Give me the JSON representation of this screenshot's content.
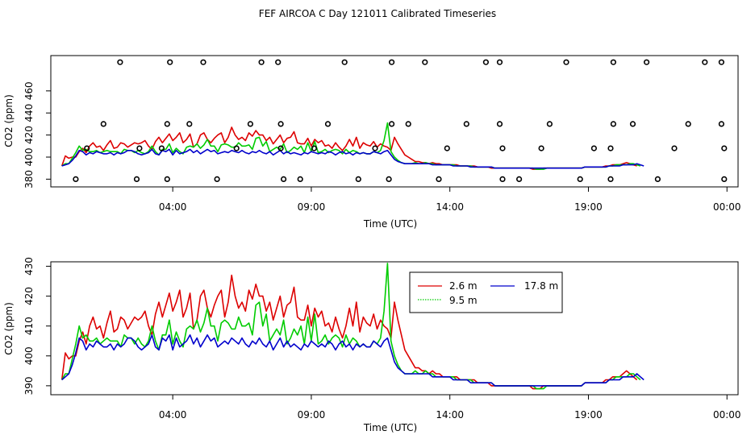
{
  "chart_data": {
    "type": "line",
    "title": "FEF  AIRCOA C  Day 121011  Calibrated Timeseries",
    "colors": {
      "2.6 m": "#dd0000",
      "9.5 m": "#00cc00",
      "17.8 m": "#0000cc",
      "markers": "#000000"
    },
    "panels": [
      {
        "name": "top",
        "xlabel": "Time (UTC)",
        "ylabel": "CO2 (ppm)",
        "xlim": [
          -0.4,
          24.4
        ],
        "ylim": [
          373,
          492
        ],
        "x_ticks": [
          {
            "v": 4,
            "label": "04:00"
          },
          {
            "v": 9,
            "label": "09:00"
          },
          {
            "v": 14,
            "label": "14:00"
          },
          {
            "v": 19,
            "label": "19:00"
          },
          {
            "v": 24,
            "label": "00:00"
          }
        ],
        "y_ticks": [
          {
            "v": 380,
            "label": "380"
          },
          {
            "v": 400,
            "label": "400"
          },
          {
            "v": 420,
            "label": "420"
          },
          {
            "v": 440,
            "label": "440"
          },
          {
            "v": 460,
            "label": "460"
          }
        ],
        "show_lines": [
          "2.6 m",
          "9.5 m",
          "17.8 m"
        ],
        "markers": [
          {
            "x": 2.1,
            "y": 486
          },
          {
            "x": 3.9,
            "y": 486
          },
          {
            "x": 5.1,
            "y": 486
          },
          {
            "x": 7.2,
            "y": 486
          },
          {
            "x": 7.8,
            "y": 486
          },
          {
            "x": 10.2,
            "y": 486
          },
          {
            "x": 11.9,
            "y": 486
          },
          {
            "x": 13.1,
            "y": 486
          },
          {
            "x": 15.3,
            "y": 486
          },
          {
            "x": 15.8,
            "y": 486
          },
          {
            "x": 18.2,
            "y": 486
          },
          {
            "x": 19.9,
            "y": 486
          },
          {
            "x": 21.1,
            "y": 486
          },
          {
            "x": 23.2,
            "y": 486
          },
          {
            "x": 23.8,
            "y": 486
          },
          {
            "x": 1.5,
            "y": 430
          },
          {
            "x": 3.8,
            "y": 430
          },
          {
            "x": 4.6,
            "y": 430
          },
          {
            "x": 6.8,
            "y": 430
          },
          {
            "x": 7.9,
            "y": 430
          },
          {
            "x": 9.6,
            "y": 430
          },
          {
            "x": 11.9,
            "y": 430
          },
          {
            "x": 12.5,
            "y": 430
          },
          {
            "x": 14.6,
            "y": 430
          },
          {
            "x": 15.8,
            "y": 430
          },
          {
            "x": 17.6,
            "y": 430
          },
          {
            "x": 19.9,
            "y": 430
          },
          {
            "x": 20.6,
            "y": 430
          },
          {
            "x": 22.6,
            "y": 430
          },
          {
            "x": 23.8,
            "y": 430
          },
          {
            "x": 0.9,
            "y": 408
          },
          {
            "x": 2.8,
            "y": 408
          },
          {
            "x": 3.6,
            "y": 408
          },
          {
            "x": 6.3,
            "y": 408
          },
          {
            "x": 7.9,
            "y": 408
          },
          {
            "x": 9.1,
            "y": 408
          },
          {
            "x": 11.3,
            "y": 408
          },
          {
            "x": 13.9,
            "y": 408
          },
          {
            "x": 15.9,
            "y": 408
          },
          {
            "x": 17.3,
            "y": 408
          },
          {
            "x": 19.2,
            "y": 408
          },
          {
            "x": 19.8,
            "y": 408
          },
          {
            "x": 22.1,
            "y": 408
          },
          {
            "x": 23.9,
            "y": 408
          },
          {
            "x": 0.5,
            "y": 380
          },
          {
            "x": 2.7,
            "y": 380
          },
          {
            "x": 3.8,
            "y": 380
          },
          {
            "x": 5.6,
            "y": 380
          },
          {
            "x": 8.0,
            "y": 380
          },
          {
            "x": 8.6,
            "y": 380
          },
          {
            "x": 10.7,
            "y": 380
          },
          {
            "x": 11.8,
            "y": 380
          },
          {
            "x": 13.6,
            "y": 380
          },
          {
            "x": 15.9,
            "y": 380
          },
          {
            "x": 16.5,
            "y": 380
          },
          {
            "x": 18.7,
            "y": 380
          },
          {
            "x": 19.8,
            "y": 380
          },
          {
            "x": 21.5,
            "y": 380
          },
          {
            "x": 23.9,
            "y": 380
          }
        ]
      },
      {
        "name": "bottom",
        "xlabel": "Time (UTC)",
        "ylabel": "CO2 (ppm)",
        "xlim": [
          -0.4,
          24.4
        ],
        "ylim": [
          387,
          431.5
        ],
        "x_ticks": [
          {
            "v": 4,
            "label": "04:00"
          },
          {
            "v": 9,
            "label": "09:00"
          },
          {
            "v": 14,
            "label": "14:00"
          },
          {
            "v": 19,
            "label": "19:00"
          },
          {
            "v": 24,
            "label": "00:00"
          }
        ],
        "y_ticks": [
          {
            "v": 390,
            "label": "390"
          },
          {
            "v": 400,
            "label": "400"
          },
          {
            "v": 410,
            "label": "410"
          },
          {
            "v": 420,
            "label": "420"
          },
          {
            "v": 430,
            "label": "430"
          }
        ],
        "show_lines": [
          "2.6 m",
          "9.5 m",
          "17.8 m"
        ]
      }
    ],
    "legend": {
      "position": "top-right of center",
      "entries": [
        {
          "label": "2.6 m",
          "color": "#dd0000"
        },
        {
          "label": "17.8 m",
          "color": "#0000cc"
        },
        {
          "label": "9.5 m",
          "color": "#00cc00"
        }
      ]
    },
    "series_x_start": 0,
    "series_x_step": 0.125,
    "series": [
      {
        "name": "2.6 m",
        "values": [
          392,
          401,
          399,
          400,
          400,
          405,
          408,
          404,
          410,
          413,
          409,
          410,
          406,
          411,
          415,
          408,
          409,
          413,
          412,
          409,
          411,
          413,
          412,
          413,
          415,
          410,
          407,
          414,
          418,
          413,
          417,
          421,
          415,
          418,
          422,
          413,
          416,
          421,
          409,
          412,
          420,
          422,
          416,
          413,
          417,
          420,
          422,
          413,
          418,
          427,
          420,
          416,
          418,
          415,
          422,
          419,
          424,
          420,
          420,
          415,
          418,
          412,
          416,
          420,
          413,
          417,
          418,
          423,
          413,
          412,
          412,
          417,
          410,
          416,
          413,
          415,
          410,
          411,
          408,
          413,
          409,
          406,
          410,
          416,
          410,
          418,
          408,
          413,
          411,
          410,
          414,
          409,
          412,
          410,
          409,
          406,
          418,
          412,
          407,
          402,
          400,
          398,
          396,
          396,
          395,
          395,
          394,
          395,
          394,
          394,
          393,
          393,
          393,
          393,
          393,
          392,
          392,
          392,
          392,
          392,
          391,
          391,
          391,
          391,
          390,
          390,
          390,
          390,
          390,
          390,
          390,
          390,
          390,
          390,
          390,
          390,
          389,
          389,
          389,
          390,
          390,
          390,
          390,
          390,
          390,
          390,
          390,
          390,
          390,
          390,
          390,
          391,
          391,
          391,
          391,
          391,
          391,
          392,
          392,
          393,
          393,
          393,
          394,
          395,
          394,
          393,
          392
        ]
      },
      {
        "name": "9.5 m",
        "values": [
          392,
          394,
          394,
          399,
          404,
          410,
          406,
          407,
          405,
          405,
          406,
          404,
          405,
          406,
          405,
          405,
          405,
          403,
          407,
          406,
          406,
          404,
          406,
          404,
          403,
          405,
          410,
          405,
          402,
          407,
          407,
          412,
          404,
          408,
          405,
          403,
          409,
          410,
          409,
          412,
          408,
          411,
          416,
          410,
          410,
          405,
          411,
          412,
          411,
          409,
          409,
          413,
          410,
          410,
          411,
          407,
          417,
          418,
          410,
          414,
          405,
          407,
          409,
          407,
          412,
          404,
          406,
          409,
          407,
          410,
          404,
          413,
          405,
          414,
          404,
          405,
          407,
          404,
          406,
          407,
          406,
          403,
          407,
          404,
          406,
          405,
          403,
          404,
          403,
          403,
          405,
          404,
          406,
          415,
          431,
          405,
          400,
          397,
          395,
          394,
          394,
          394,
          395,
          394,
          394,
          395,
          394,
          394,
          393,
          393,
          393,
          393,
          393,
          393,
          392,
          392,
          392,
          392,
          392,
          391,
          391,
          391,
          391,
          391,
          391,
          390,
          390,
          390,
          390,
          390,
          390,
          390,
          390,
          390,
          390,
          390,
          390,
          389,
          389,
          389,
          390,
          390,
          390,
          390,
          390,
          390,
          390,
          390,
          390,
          390,
          390,
          391,
          391,
          391,
          391,
          391,
          391,
          391,
          392,
          392,
          393,
          393,
          393,
          393,
          394,
          394,
          393,
          392
        ]
      },
      {
        "name": "17.8 m",
        "values": [
          392,
          393,
          394,
          397,
          401,
          406,
          405,
          402,
          404,
          403,
          405,
          404,
          403,
          403,
          404,
          402,
          404,
          403,
          404,
          406,
          406,
          405,
          403,
          402,
          403,
          404,
          407,
          403,
          402,
          406,
          405,
          407,
          402,
          406,
          403,
          404,
          405,
          407,
          404,
          406,
          403,
          405,
          407,
          405,
          406,
          403,
          404,
          405,
          404,
          406,
          405,
          404,
          406,
          404,
          403,
          405,
          404,
          406,
          404,
          403,
          405,
          402,
          404,
          406,
          403,
          405,
          403,
          404,
          403,
          402,
          404,
          403,
          405,
          404,
          403,
          404,
          403,
          405,
          404,
          402,
          404,
          405,
          403,
          404,
          402,
          404,
          403,
          404,
          403,
          403,
          405,
          404,
          403,
          405,
          406,
          402,
          398,
          396,
          395,
          394,
          394,
          394,
          394,
          394,
          394,
          394,
          394,
          393,
          393,
          393,
          393,
          393,
          393,
          392,
          392,
          392,
          392,
          392,
          391,
          391,
          391,
          391,
          391,
          391,
          391,
          390,
          390,
          390,
          390,
          390,
          390,
          390,
          390,
          390,
          390,
          390,
          390,
          390,
          390,
          390,
          390,
          390,
          390,
          390,
          390,
          390,
          390,
          390,
          390,
          390,
          390,
          391,
          391,
          391,
          391,
          391,
          391,
          391,
          392,
          392,
          392,
          392,
          393,
          393,
          393,
          393,
          394,
          393,
          392
        ]
      }
    ]
  }
}
